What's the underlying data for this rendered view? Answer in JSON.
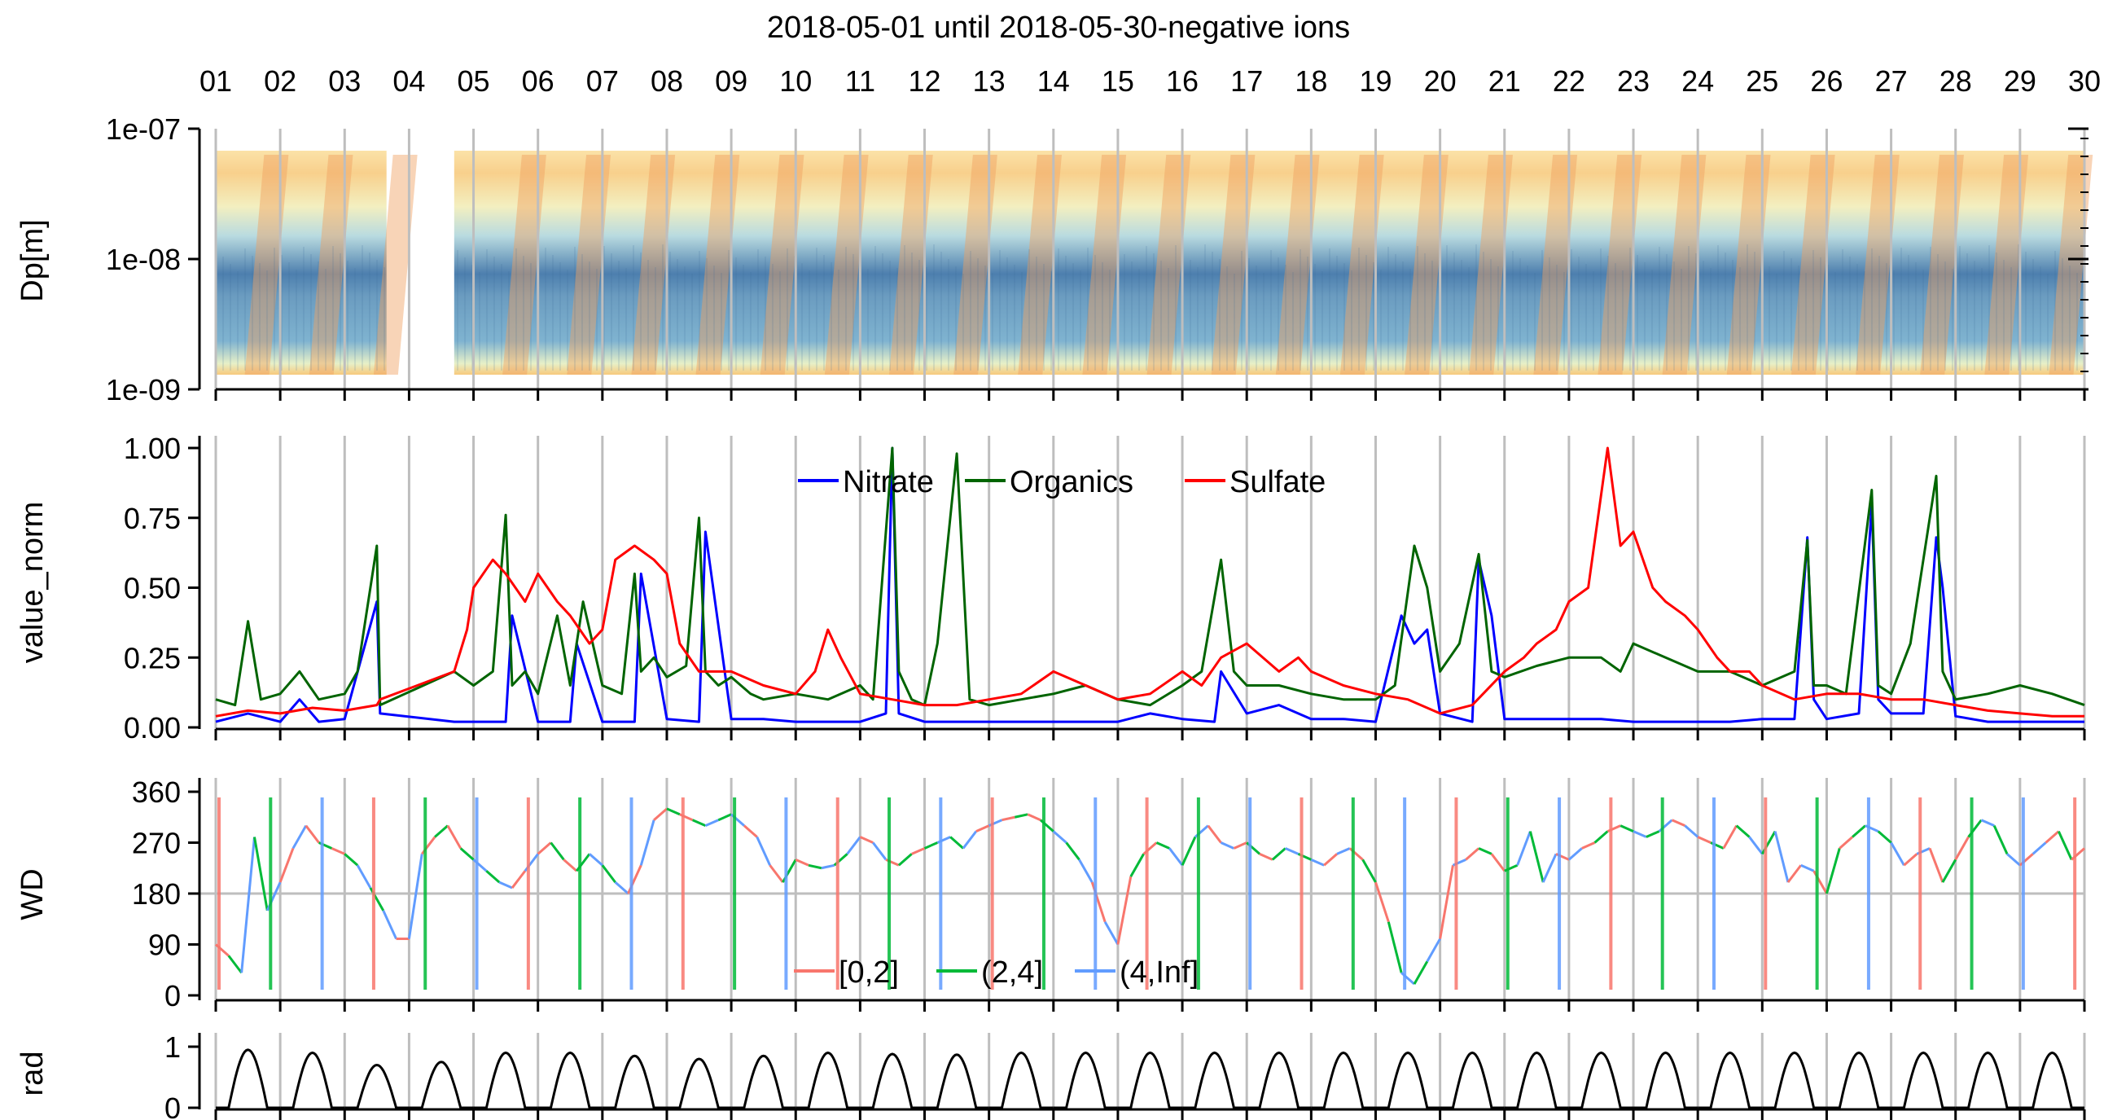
{
  "title": "2018-05-01 until 2018-05-30-negative ions",
  "days": [
    "01",
    "02",
    "03",
    "04",
    "05",
    "06",
    "07",
    "08",
    "09",
    "10",
    "11",
    "12",
    "13",
    "14",
    "15",
    "16",
    "17",
    "18",
    "19",
    "20",
    "21",
    "22",
    "23",
    "24",
    "25",
    "26",
    "27",
    "28",
    "29",
    "30"
  ],
  "colors": {
    "nitrate": "#0000ff",
    "organics": "#006400",
    "sulfate": "#ff0000",
    "wd_low": "#f8766d",
    "wd_mid": "#00ba38",
    "wd_high": "#619cff",
    "gridline": "#bebebe"
  },
  "chart_data": [
    {
      "type": "heatmap",
      "ylabel": "Dp[m]",
      "yscale": "log",
      "ylim": [
        1e-09,
        1e-07
      ],
      "yticks": [
        "1e-07",
        "1e-08",
        "1e-09"
      ],
      "x_range_days": [
        1,
        30
      ],
      "data_gap_days": [
        3.65,
        4.7
      ],
      "colormap": "blue (low) to yellow to orange (high)"
    },
    {
      "type": "line",
      "ylabel": "value_norm",
      "ylim": [
        0,
        1
      ],
      "yticks": [
        "0.00",
        "0.25",
        "0.50",
        "0.75",
        "1.00"
      ],
      "legend": "top-center",
      "series": [
        {
          "name": "Nitrate",
          "x": [
            1,
            1.5,
            2,
            2.3,
            2.6,
            3,
            3.5,
            3.55,
            4.7,
            5,
            5.5,
            5.6,
            6,
            6.5,
            6.6,
            7,
            7.5,
            7.6,
            8,
            8.5,
            8.6,
            9,
            9.5,
            10,
            10.5,
            11,
            11.4,
            11.5,
            11.6,
            12,
            12.5,
            13,
            13.5,
            14,
            14.5,
            15,
            15.5,
            16,
            16.5,
            16.6,
            17,
            17.5,
            18,
            18.5,
            19,
            19.4,
            19.6,
            19.8,
            20,
            20.5,
            20.6,
            20.8,
            21,
            21.5,
            22,
            22.5,
            23,
            23.5,
            24,
            24.5,
            25,
            25.5,
            25.7,
            25.8,
            26,
            26.5,
            26.7,
            26.8,
            27,
            27.5,
            27.7,
            27.8,
            28,
            28.5,
            29,
            29.5,
            30
          ],
          "values": [
            0.02,
            0.05,
            0.02,
            0.1,
            0.02,
            0.03,
            0.45,
            0.05,
            0.02,
            0.02,
            0.02,
            0.4,
            0.02,
            0.02,
            0.3,
            0.02,
            0.02,
            0.55,
            0.03,
            0.02,
            0.7,
            0.03,
            0.03,
            0.02,
            0.02,
            0.02,
            0.05,
            1.0,
            0.05,
            0.02,
            0.02,
            0.02,
            0.02,
            0.02,
            0.02,
            0.02,
            0.05,
            0.03,
            0.02,
            0.2,
            0.05,
            0.08,
            0.03,
            0.03,
            0.02,
            0.4,
            0.3,
            0.35,
            0.05,
            0.02,
            0.6,
            0.4,
            0.03,
            0.03,
            0.03,
            0.03,
            0.02,
            0.02,
            0.02,
            0.02,
            0.03,
            0.03,
            0.68,
            0.1,
            0.03,
            0.05,
            0.8,
            0.1,
            0.05,
            0.05,
            0.68,
            0.5,
            0.04,
            0.02,
            0.02,
            0.02,
            0.02
          ]
        },
        {
          "name": "Organics",
          "x": [
            1,
            1.3,
            1.5,
            1.7,
            2,
            2.3,
            2.6,
            3,
            3.2,
            3.5,
            3.55,
            4.7,
            5,
            5.3,
            5.5,
            5.6,
            5.8,
            6,
            6.3,
            6.5,
            6.7,
            7,
            7.3,
            7.5,
            7.6,
            7.8,
            8,
            8.3,
            8.5,
            8.6,
            8.8,
            9,
            9.3,
            9.5,
            10,
            10.5,
            11,
            11.2,
            11.5,
            11.6,
            11.8,
            12,
            12.2,
            12.5,
            12.7,
            13,
            13.5,
            14,
            14.5,
            15,
            15.5,
            16,
            16.3,
            16.6,
            16.8,
            17,
            17.5,
            18,
            18.5,
            19,
            19.3,
            19.6,
            19.8,
            20,
            20.3,
            20.6,
            20.8,
            21,
            21.5,
            22,
            22.5,
            22.8,
            23,
            23.5,
            24,
            24.5,
            25,
            25.5,
            25.7,
            25.8,
            26,
            26.3,
            26.7,
            26.8,
            27,
            27.3,
            27.7,
            27.8,
            28,
            28.5,
            29,
            29.5,
            30
          ],
          "values": [
            0.1,
            0.08,
            0.38,
            0.1,
            0.12,
            0.2,
            0.1,
            0.12,
            0.2,
            0.65,
            0.08,
            0.2,
            0.15,
            0.2,
            0.76,
            0.15,
            0.2,
            0.12,
            0.4,
            0.15,
            0.45,
            0.15,
            0.12,
            0.55,
            0.2,
            0.25,
            0.18,
            0.22,
            0.75,
            0.2,
            0.15,
            0.18,
            0.12,
            0.1,
            0.12,
            0.1,
            0.15,
            0.1,
            1.0,
            0.2,
            0.1,
            0.08,
            0.3,
            0.98,
            0.1,
            0.08,
            0.1,
            0.12,
            0.15,
            0.1,
            0.08,
            0.15,
            0.2,
            0.6,
            0.2,
            0.15,
            0.15,
            0.12,
            0.1,
            0.1,
            0.15,
            0.65,
            0.5,
            0.2,
            0.3,
            0.62,
            0.2,
            0.18,
            0.22,
            0.25,
            0.25,
            0.2,
            0.3,
            0.25,
            0.2,
            0.2,
            0.15,
            0.2,
            0.67,
            0.15,
            0.15,
            0.12,
            0.85,
            0.15,
            0.12,
            0.3,
            0.9,
            0.2,
            0.1,
            0.12,
            0.15,
            0.12,
            0.08
          ]
        },
        {
          "name": "Sulfate",
          "x": [
            1,
            1.5,
            2,
            2.5,
            3,
            3.5,
            3.55,
            4.7,
            4.9,
            5,
            5.3,
            5.5,
            5.8,
            6,
            6.3,
            6.5,
            6.8,
            7,
            7.2,
            7.5,
            7.8,
            8,
            8.2,
            8.5,
            9,
            9.5,
            10,
            10.3,
            10.5,
            10.7,
            11,
            11.5,
            12,
            12.5,
            13,
            13.5,
            14,
            14.5,
            15,
            15.5,
            16,
            16.3,
            16.6,
            17,
            17.5,
            17.8,
            18,
            18.5,
            19,
            19.5,
            20,
            20.5,
            21,
            21.3,
            21.5,
            21.8,
            22,
            22.3,
            22.6,
            22.8,
            23,
            23.3,
            23.5,
            23.8,
            24,
            24.3,
            24.5,
            24.8,
            25,
            25.5,
            26,
            26.5,
            27,
            27.5,
            28,
            28.5,
            29,
            29.5,
            30
          ],
          "values": [
            0.04,
            0.06,
            0.05,
            0.07,
            0.06,
            0.08,
            0.1,
            0.2,
            0.35,
            0.5,
            0.6,
            0.55,
            0.45,
            0.55,
            0.45,
            0.4,
            0.3,
            0.35,
            0.6,
            0.65,
            0.6,
            0.55,
            0.3,
            0.2,
            0.2,
            0.15,
            0.12,
            0.2,
            0.35,
            0.25,
            0.12,
            0.1,
            0.08,
            0.08,
            0.1,
            0.12,
            0.2,
            0.15,
            0.1,
            0.12,
            0.2,
            0.15,
            0.25,
            0.3,
            0.2,
            0.25,
            0.2,
            0.15,
            0.12,
            0.1,
            0.05,
            0.08,
            0.2,
            0.25,
            0.3,
            0.35,
            0.45,
            0.5,
            1.0,
            0.65,
            0.7,
            0.5,
            0.45,
            0.4,
            0.35,
            0.25,
            0.2,
            0.2,
            0.15,
            0.1,
            0.12,
            0.12,
            0.1,
            0.1,
            0.08,
            0.06,
            0.05,
            0.04,
            0.04
          ]
        }
      ]
    },
    {
      "type": "line",
      "ylabel": "WD",
      "ylim": [
        0,
        360
      ],
      "yticks": [
        "0",
        "90",
        "180",
        "270",
        "360"
      ],
      "hline": 180,
      "legend": "bottom-center",
      "legend_labels": [
        "[0,2]",
        "(2,4]",
        "(4,Inf]"
      ],
      "x": [
        1,
        1.2,
        1.4,
        1.6,
        1.8,
        2,
        2.2,
        2.4,
        2.6,
        2.8,
        3,
        3.2,
        3.4,
        3.6,
        3.8,
        4,
        4.2,
        4.4,
        4.6,
        4.8,
        5,
        5.2,
        5.4,
        5.6,
        5.8,
        6,
        6.2,
        6.4,
        6.6,
        6.8,
        7,
        7.2,
        7.4,
        7.6,
        7.8,
        8,
        8.2,
        8.4,
        8.6,
        8.8,
        9,
        9.2,
        9.4,
        9.6,
        9.8,
        10,
        10.2,
        10.4,
        10.6,
        10.8,
        11,
        11.2,
        11.4,
        11.6,
        11.8,
        12,
        12.2,
        12.4,
        12.6,
        12.8,
        13,
        13.2,
        13.4,
        13.6,
        13.8,
        14,
        14.2,
        14.4,
        14.6,
        14.8,
        15,
        15.2,
        15.4,
        15.6,
        15.8,
        16,
        16.2,
        16.4,
        16.6,
        16.8,
        17,
        17.2,
        17.4,
        17.6,
        17.8,
        18,
        18.2,
        18.4,
        18.6,
        18.8,
        19,
        19.2,
        19.4,
        19.6,
        19.8,
        20,
        20.2,
        20.4,
        20.6,
        20.8,
        21,
        21.2,
        21.4,
        21.6,
        21.8,
        22,
        22.2,
        22.4,
        22.6,
        22.8,
        23,
        23.2,
        23.4,
        23.6,
        23.8,
        24,
        24.2,
        24.4,
        24.6,
        24.8,
        25,
        25.2,
        25.4,
        25.6,
        25.8,
        26,
        26.2,
        26.4,
        26.6,
        26.8,
        27,
        27.2,
        27.4,
        27.6,
        27.8,
        28,
        28.2,
        28.4,
        28.6,
        28.8,
        29,
        29.2,
        29.4,
        29.6,
        29.8,
        30
      ],
      "values": [
        90,
        70,
        40,
        280,
        150,
        200,
        260,
        300,
        270,
        260,
        250,
        230,
        190,
        150,
        100,
        100,
        250,
        280,
        300,
        260,
        240,
        220,
        200,
        190,
        220,
        250,
        270,
        240,
        220,
        250,
        230,
        200,
        180,
        230,
        310,
        330,
        320,
        310,
        300,
        310,
        320,
        300,
        280,
        230,
        200,
        240,
        230,
        225,
        230,
        250,
        280,
        270,
        240,
        230,
        250,
        260,
        270,
        280,
        260,
        290,
        300,
        310,
        315,
        320,
        310,
        290,
        270,
        240,
        200,
        130,
        90,
        210,
        250,
        270,
        260,
        230,
        280,
        300,
        270,
        260,
        270,
        250,
        240,
        260,
        250,
        240,
        230,
        250,
        260,
        240,
        200,
        130,
        40,
        20,
        60,
        100,
        230,
        240,
        260,
        250,
        220,
        230,
        290,
        200,
        250,
        240,
        260,
        270,
        290,
        300,
        290,
        280,
        290,
        310,
        300,
        280,
        270,
        260,
        300,
        280,
        250,
        290,
        200,
        230,
        220,
        180,
        260,
        280,
        300,
        290,
        270,
        230,
        250,
        260,
        200,
        240,
        280,
        310,
        300,
        250,
        230,
        250,
        270,
        290,
        240,
        260
      ]
    },
    {
      "type": "line",
      "ylabel": "rad",
      "ylim": [
        0,
        1
      ],
      "yticks": [
        "0",
        "1"
      ],
      "daily_peak_values": [
        0.95,
        0.9,
        0.7,
        0.75,
        0.9,
        0.9,
        0.85,
        0.8,
        0.85,
        0.9,
        0.88,
        0.87,
        0.9,
        0.9,
        0.9,
        0.9,
        0.9,
        0.9,
        0.9,
        0.9,
        0.9,
        0.9,
        0.9,
        0.9,
        0.9,
        0.9,
        0.9,
        0.9,
        0.9
      ]
    }
  ]
}
